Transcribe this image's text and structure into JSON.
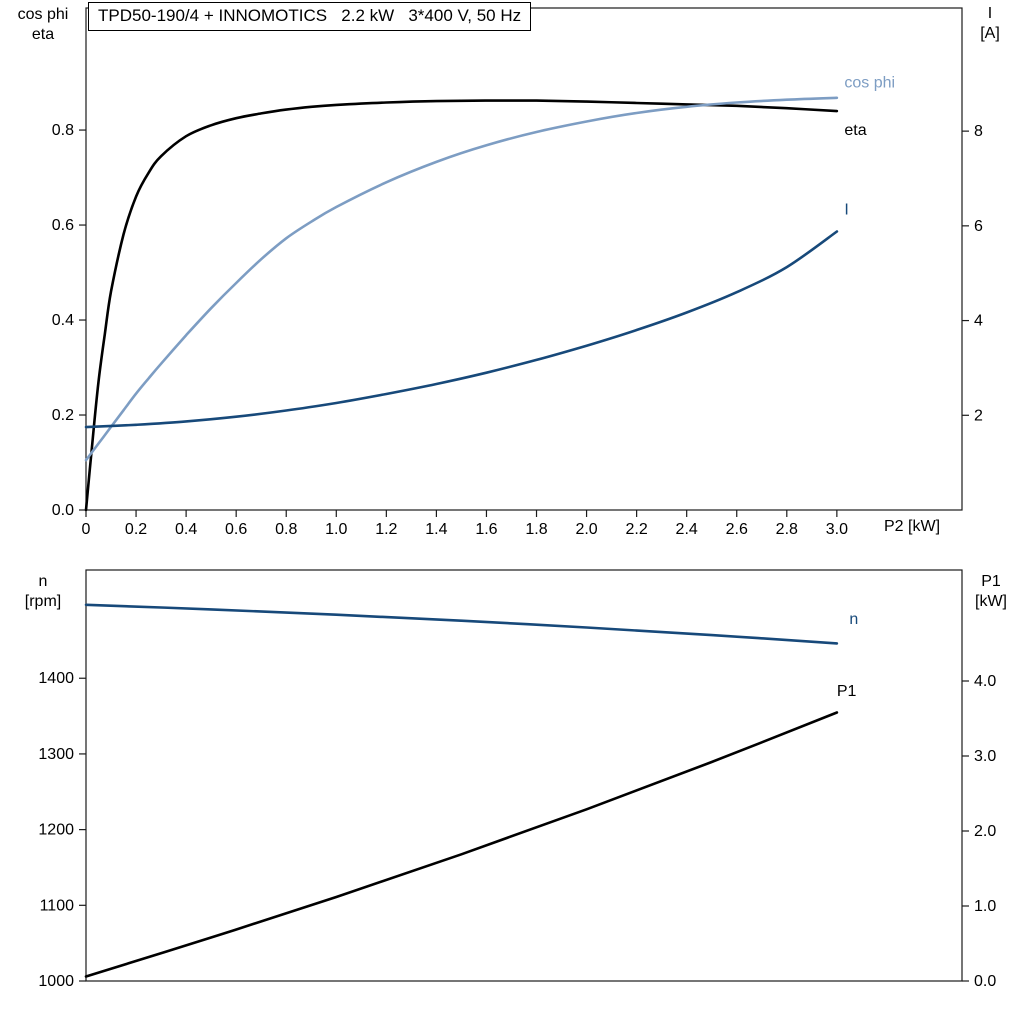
{
  "page": {
    "background": "#ffffff",
    "axis_color": "#1a1a1a"
  },
  "chart_data": [
    {
      "type": "line",
      "title": "TPD50-190/4 + INNOMOTICS   2.2 kW   3*400 V, 50 Hz",
      "x_axis": {
        "label": "P2 [kW]",
        "range": [
          0,
          3.5
        ],
        "ticks": [
          0,
          0.2,
          0.4,
          0.6,
          0.8,
          1.0,
          1.2,
          1.4,
          1.6,
          1.8,
          2.0,
          2.2,
          2.4,
          2.6,
          2.8,
          3.0
        ],
        "tick_labels": [
          "0",
          "0.2",
          "0.4",
          "0.6",
          "0.8",
          "1.0",
          "1.2",
          "1.4",
          "1.6",
          "1.8",
          "2.0",
          "2.2",
          "2.4",
          "2.6",
          "2.8",
          "3.0"
        ]
      },
      "y_left": {
        "label_lines": [
          "cos phi",
          "eta"
        ],
        "range": [
          0,
          1.057
        ],
        "ticks": [
          0,
          0.2,
          0.4,
          0.6,
          0.8
        ],
        "tick_labels": [
          "0.0",
          "0.2",
          "0.4",
          "0.6",
          "0.8"
        ]
      },
      "y_right": {
        "label_lines": [
          "I",
          "[A]"
        ],
        "range": [
          0,
          10.6
        ],
        "ticks": [
          2,
          4,
          6,
          8
        ],
        "tick_labels": [
          "2",
          "4",
          "6",
          "8"
        ]
      },
      "grid": false,
      "series": [
        {
          "name": "eta",
          "axis": "left",
          "color": "#000000",
          "label": "eta",
          "label_pos": {
            "x": 3.03,
            "y": 0.8
          },
          "x": [
            0,
            0.025,
            0.05,
            0.075,
            0.1,
            0.15,
            0.2,
            0.25,
            0.3,
            0.4,
            0.5,
            0.6,
            0.7,
            0.8,
            0.9,
            1.0,
            1.2,
            1.4,
            1.6,
            1.8,
            2.0,
            2.2,
            2.4,
            2.6,
            2.8,
            3.0
          ],
          "y": [
            0,
            0.14,
            0.27,
            0.37,
            0.46,
            0.58,
            0.66,
            0.71,
            0.745,
            0.787,
            0.81,
            0.825,
            0.835,
            0.843,
            0.849,
            0.853,
            0.858,
            0.861,
            0.862,
            0.862,
            0.86,
            0.857,
            0.854,
            0.851,
            0.846,
            0.84
          ]
        },
        {
          "name": "cos phi",
          "axis": "left",
          "color": "#7d9dc3",
          "label": "cos phi",
          "label_pos": {
            "x": 3.03,
            "y": 0.9
          },
          "x": [
            0,
            0.05,
            0.1,
            0.15,
            0.2,
            0.25,
            0.3,
            0.4,
            0.5,
            0.6,
            0.7,
            0.8,
            0.9,
            1.0,
            1.2,
            1.4,
            1.6,
            1.8,
            2.0,
            2.2,
            2.4,
            2.6,
            2.8,
            3.0
          ],
          "y": [
            0.105,
            0.14,
            0.175,
            0.21,
            0.245,
            0.277,
            0.308,
            0.368,
            0.425,
            0.478,
            0.528,
            0.572,
            0.607,
            0.638,
            0.69,
            0.733,
            0.768,
            0.796,
            0.818,
            0.836,
            0.849,
            0.858,
            0.864,
            0.868
          ]
        },
        {
          "name": "I",
          "axis": "right",
          "color": "#17497a",
          "label": "I",
          "label_pos": {
            "x": 3.03,
            "y": 6.35
          },
          "x": [
            0,
            0.2,
            0.4,
            0.6,
            0.8,
            1.0,
            1.2,
            1.4,
            1.6,
            1.8,
            2.0,
            2.2,
            2.4,
            2.6,
            2.8,
            3.0
          ],
          "y": [
            1.75,
            1.8,
            1.87,
            1.97,
            2.1,
            2.26,
            2.45,
            2.66,
            2.9,
            3.17,
            3.47,
            3.8,
            4.17,
            4.6,
            5.13,
            5.88
          ]
        }
      ]
    },
    {
      "type": "line",
      "title": "",
      "x_axis": {
        "label": "",
        "range": [
          0,
          3.5
        ],
        "ticks": [],
        "tick_labels": []
      },
      "y_left": {
        "label_lines": [
          "n",
          "[rpm]"
        ],
        "range": [
          1000,
          1543
        ],
        "ticks": [
          1000,
          1100,
          1200,
          1300,
          1400
        ],
        "tick_labels": [
          "1000",
          "1100",
          "1200",
          "1300",
          "1400"
        ]
      },
      "y_right": {
        "label_lines": [
          "P1",
          "[kW]"
        ],
        "range": [
          0,
          5.48
        ],
        "ticks": [
          0,
          1,
          2,
          3,
          4
        ],
        "tick_labels": [
          "0.0",
          "1.0",
          "2.0",
          "3.0",
          "4.0"
        ]
      },
      "grid": false,
      "series": [
        {
          "name": "n",
          "axis": "left",
          "color": "#17497a",
          "label": "n",
          "label_pos": {
            "x": 3.05,
            "y": 1478
          },
          "x": [
            0,
            0.5,
            1.0,
            1.5,
            2.0,
            2.5,
            3.0
          ],
          "y": [
            1497,
            1491,
            1484,
            1476,
            1467,
            1457,
            1446
          ]
        },
        {
          "name": "P1",
          "axis": "right",
          "color": "#000000",
          "label": "P1",
          "label_pos": {
            "x": 3.0,
            "y": 3.87
          },
          "x": [
            0,
            0.5,
            1.0,
            1.5,
            2.0,
            2.5,
            3.0
          ],
          "y": [
            0.06,
            0.58,
            1.12,
            1.69,
            2.29,
            2.92,
            3.58
          ]
        }
      ]
    }
  ]
}
